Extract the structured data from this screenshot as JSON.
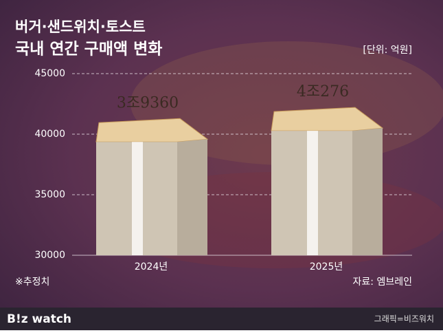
{
  "chart_data": {
    "type": "bar",
    "title": "버거·샌드위치·토스트",
    "subtitle": "국내 연간 구매액 변화",
    "unit_label": "[단위: 억원]",
    "categories": [
      "2024년",
      "2025년"
    ],
    "values": [
      39360,
      40276
    ],
    "value_labels": [
      "3조9360",
      "4조276"
    ],
    "color": "#cfc5b4",
    "ylim": [
      30000,
      45000
    ],
    "yticks": [
      30000,
      35000,
      40000,
      45000
    ],
    "grid": true,
    "note": "※추정치",
    "source": "자료: 엠브레인"
  },
  "footer": {
    "logo": "B!z watch",
    "credit": "그래픽=비즈워치"
  }
}
